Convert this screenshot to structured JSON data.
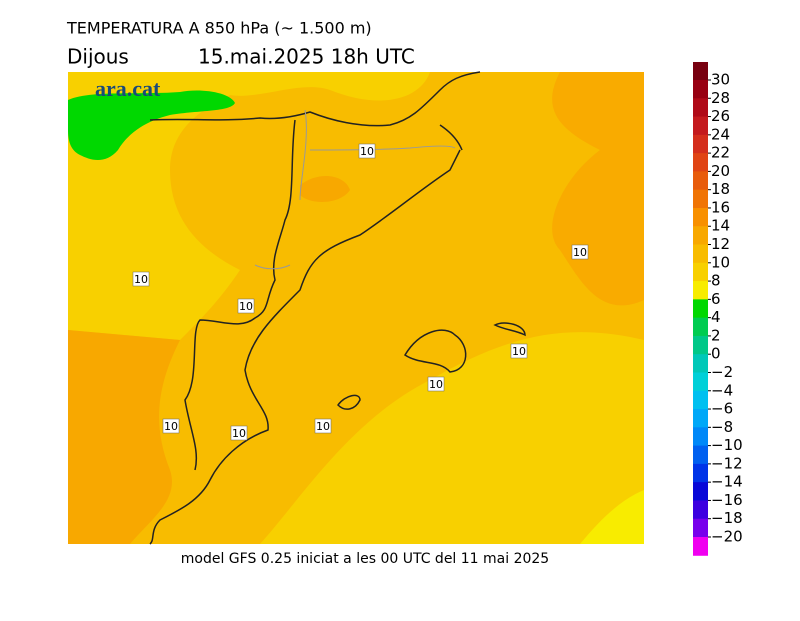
{
  "header": {
    "title": "TEMPERATURA A 850 hPa (~ 1.500 m)",
    "day": "Dijous",
    "date": "15.mai.2025 18h UTC"
  },
  "logo": "ara.cat",
  "footer": "model GFS 0.25 iniciat a les 00 UTC del 11 mai 2025",
  "contour_labels": [
    "10",
    "10",
    "10",
    "10",
    "10",
    "10",
    "10",
    "10",
    "10"
  ],
  "colorbar": {
    "ticks": [
      30,
      28,
      26,
      24,
      22,
      20,
      18,
      16,
      14,
      12,
      10,
      8,
      6,
      4,
      2,
      0,
      {
        "value": -2,
        "label": "−2"
      },
      {
        "value": -4,
        "label": "−4"
      },
      {
        "value": -6,
        "label": "−6"
      },
      {
        "value": -8,
        "label": "−8"
      },
      {
        "value": -10,
        "label": "−10"
      },
      {
        "value": -12,
        "label": "−12"
      },
      {
        "value": -14,
        "label": "−14"
      },
      {
        "value": -16,
        "label": "−16"
      },
      {
        "value": -18,
        "label": "−18"
      },
      {
        "value": -20,
        "label": "−20"
      }
    ],
    "colors": [
      "#780010",
      "#980012",
      "#b00a18",
      "#c41a1e",
      "#d42e1c",
      "#e04414",
      "#e85c0c",
      "#f07404",
      "#f89000",
      "#f8a800",
      "#f8bc00",
      "#f8d000",
      "#f8ec00",
      "#00d800",
      "#00cc50",
      "#00c888",
      "#00c8b8",
      "#00d0d8",
      "#00c0f0",
      "#00a8f8",
      "#0088f8",
      "#0060f0",
      "#0034e8",
      "#0808d8",
      "#3c00e0",
      "#7800ec",
      "#f000f0"
    ]
  }
}
